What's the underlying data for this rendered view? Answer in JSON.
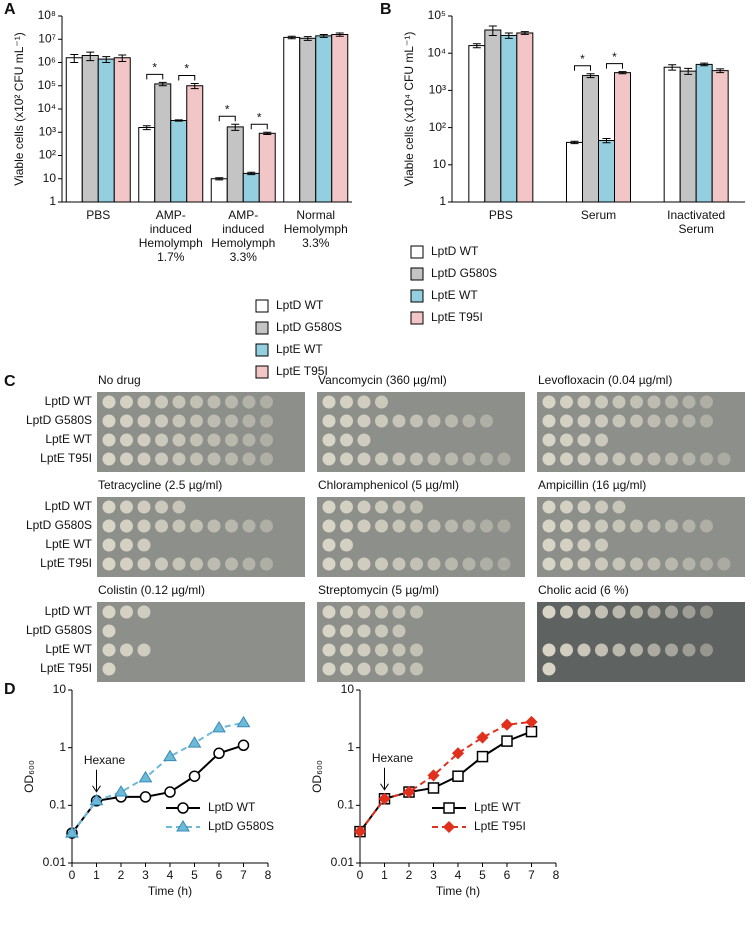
{
  "panel_labels": [
    "A",
    "B",
    "C",
    "D"
  ],
  "chart_data": [
    {
      "type": "bar",
      "ylabel": "Viable cells (x10² CFU mL⁻¹)",
      "log_y": true,
      "categories": [
        "PBS",
        "AMP-\ninduced\nHemolymph\n1.7%",
        "AMP-\ninduced\nHemolymph\n3.3%",
        "Normal\nHemolymph\n3.3%"
      ],
      "series": [
        {
          "name": "LptD WT",
          "color": "#ffffff",
          "values": [
            1600000,
            1600,
            10,
            12000000
          ],
          "errors": [
            600000,
            300,
            1,
            1500000
          ]
        },
        {
          "name": "LptD G580S",
          "color": "#c4c4c4",
          "values": [
            2000000,
            120000,
            1700,
            11000000
          ],
          "errors": [
            800000,
            20000,
            500,
            2000000
          ]
        },
        {
          "name": "LptE WT",
          "color": "#93cfdf",
          "values": [
            1400000,
            3200,
            17,
            14000000
          ],
          "errors": [
            400000,
            200,
            2,
            2000000
          ]
        },
        {
          "name": "LptE T95I",
          "color": "#f2c6c6",
          "values": [
            1600000,
            100000,
            900,
            16000000
          ],
          "errors": [
            500000,
            25000,
            100,
            2500000
          ]
        }
      ],
      "ylim": [
        1,
        100000000
      ],
      "yticks": [
        1,
        10,
        {
          "value": 100,
          "label": "10²"
        },
        {
          "value": 1000,
          "label": "10³"
        },
        {
          "value": 10000,
          "label": "10⁴"
        },
        {
          "value": 100000,
          "label": "10⁵"
        },
        {
          "value": 1000000,
          "label": "10⁶"
        },
        {
          "value": 10000000,
          "label": "10⁷"
        },
        {
          "value": 100000000,
          "label": "10⁸"
        }
      ],
      "annotations": [
        "*",
        "*",
        "*",
        "*"
      ]
    },
    {
      "type": "bar",
      "ylabel": "Viable cells (x10⁴ CFU mL⁻¹)",
      "log_y": true,
      "categories": [
        "PBS",
        "Serum",
        "Inactivated\nSerum"
      ],
      "series": [
        {
          "name": "LptD WT",
          "color": "#ffffff",
          "values": [
            16000,
            40,
            4200
          ],
          "errors": [
            2000,
            3,
            700
          ]
        },
        {
          "name": "LptD G580S",
          "color": "#c4c4c4",
          "values": [
            42000,
            2500,
            3300
          ],
          "errors": [
            12000,
            300,
            600
          ]
        },
        {
          "name": "LptE WT",
          "color": "#93cfdf",
          "values": [
            30000,
            45,
            5000
          ],
          "errors": [
            5000,
            6,
            400
          ]
        },
        {
          "name": "LptE T95I",
          "color": "#f2c6c6",
          "values": [
            35000,
            3000,
            3400
          ],
          "errors": [
            3000,
            200,
            400
          ]
        }
      ],
      "ylim": [
        1,
        100000
      ],
      "yticks": [
        1,
        10,
        {
          "value": 100,
          "label": "10²"
        },
        {
          "value": 1000,
          "label": "10³"
        },
        {
          "value": 10000,
          "label": "10⁴"
        },
        {
          "value": 100000,
          "label": "10⁵"
        }
      ],
      "annotations": [
        "*",
        "*"
      ]
    },
    {
      "type": "line",
      "ylabel": "OD₆₀₀",
      "xlabel": "Time (h)",
      "log_y": true,
      "x": [
        0,
        1,
        2,
        3,
        4,
        5,
        6,
        7
      ],
      "series": [
        {
          "name": "LptD WT",
          "color": "#000000",
          "marker": "circle",
          "dashed": false,
          "values": [
            0.033,
            0.12,
            0.14,
            0.14,
            0.17,
            0.32,
            0.8,
            1.1
          ]
        },
        {
          "name": "LptD G580S",
          "color": "#6cbad8",
          "marker": "triangle",
          "dashed": true,
          "values": [
            0.033,
            0.12,
            0.17,
            0.3,
            0.7,
            1.2,
            2.2,
            2.7
          ]
        }
      ],
      "xlim": [
        0,
        8
      ],
      "xticks": [
        0,
        1,
        2,
        3,
        4,
        5,
        6,
        7,
        8
      ],
      "ylim": [
        0.01,
        10
      ],
      "yticks": [
        0.01,
        0.1,
        1,
        10
      ],
      "annotation": {
        "text": "Hexane",
        "x": 1
      }
    },
    {
      "type": "line",
      "ylabel": "OD₆₀₀",
      "xlabel": "Time (h)",
      "log_y": true,
      "x": [
        0,
        1,
        2,
        3,
        4,
        5,
        6,
        7
      ],
      "series": [
        {
          "name": "LptE WT",
          "color": "#000000",
          "marker": "square",
          "dashed": false,
          "values": [
            0.035,
            0.13,
            0.17,
            0.2,
            0.32,
            0.7,
            1.3,
            1.9
          ]
        },
        {
          "name": "LptE T95I",
          "color": "#e0301e",
          "marker": "diamond",
          "dashed": true,
          "values": [
            0.035,
            0.13,
            0.17,
            0.33,
            0.8,
            1.5,
            2.5,
            2.8
          ]
        }
      ],
      "xlim": [
        0,
        8
      ],
      "xticks": [
        0,
        1,
        2,
        3,
        4,
        5,
        6,
        7,
        8
      ],
      "ylim": [
        0.01,
        10
      ],
      "yticks": [
        0.01,
        0.1,
        1,
        10
      ],
      "annotation": {
        "text": "Hexane",
        "x": 1
      }
    }
  ],
  "plates": {
    "strains": [
      "LptD WT",
      "LptD G580S",
      "LptE WT",
      "LptE T95I"
    ],
    "titles": [
      "No drug",
      "Vancomycin (360 µg/ml)",
      "Levofloxacin (0.04 µg/ml)",
      "Tetracycline (2.5 µg/ml)",
      "Chloramphenicol (5 µg/ml)",
      "Ampicillin (16 µg/ml)",
      "Colistin (0.12 µg/ml)",
      "Streptomycin (5 µg/ml)",
      "Cholic acid (6 %)"
    ]
  }
}
